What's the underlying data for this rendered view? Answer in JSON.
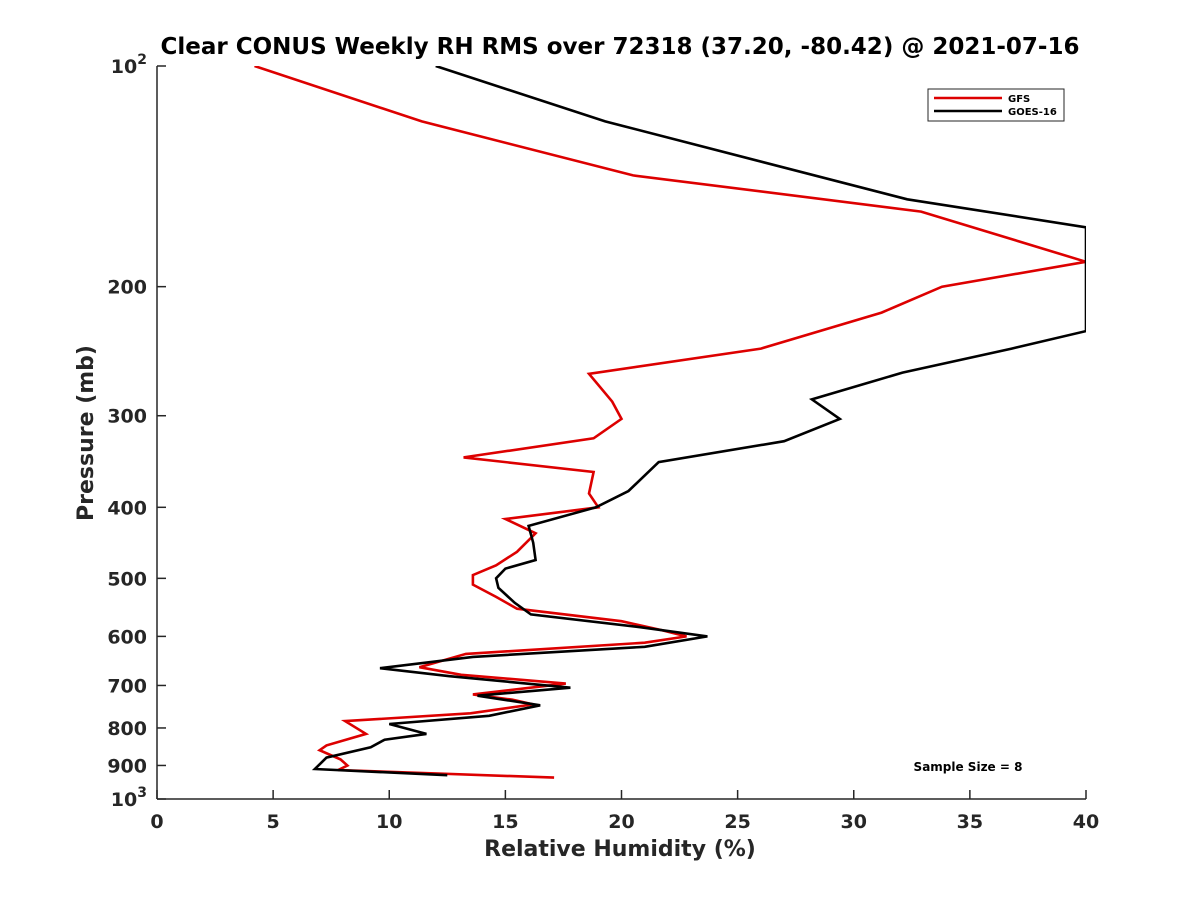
{
  "chart_data": {
    "type": "line",
    "title": "Clear CONUS Weekly RH RMS over 72318 (37.20, -80.42) @ 2021-07-16",
    "xlabel": "Relative Humidity (%)",
    "ylabel": "Pressure (mb)",
    "xlim": [
      0,
      40
    ],
    "ylim": [
      100,
      1000
    ],
    "y_scale": "log",
    "y_reversed": true,
    "grid": false,
    "legend_position": "top-right",
    "x_ticks": [
      "0",
      "5",
      "10",
      "15",
      "20",
      "25",
      "30",
      "35",
      "40"
    ],
    "y_ticks": [
      {
        "value": 100,
        "base": "10",
        "exp": "2"
      },
      {
        "value": 200,
        "label": "200"
      },
      {
        "value": 300,
        "label": "300"
      },
      {
        "value": 400,
        "label": "400"
      },
      {
        "value": 500,
        "label": "500"
      },
      {
        "value": 600,
        "label": "600"
      },
      {
        "value": 700,
        "label": "700"
      },
      {
        "value": 800,
        "label": "800"
      },
      {
        "value": 900,
        "label": "900"
      },
      {
        "value": 1000,
        "base": "10",
        "exp": "3"
      }
    ],
    "annotation": "Sample Size = 8",
    "series": [
      {
        "name": "GFS",
        "color": "#dd0000",
        "points": [
          [
            4.2,
            100
          ],
          [
            11.4,
            119
          ],
          [
            20.5,
            141
          ],
          [
            32.9,
            158
          ],
          [
            40,
            185
          ],
          [
            33.8,
            200
          ],
          [
            31.2,
            217
          ],
          [
            26.0,
            243
          ],
          [
            18.6,
            263
          ],
          [
            19.6,
            287
          ],
          [
            20.0,
            303
          ],
          [
            18.8,
            322
          ],
          [
            13.2,
            342
          ],
          [
            18.8,
            358
          ],
          [
            18.6,
            383
          ],
          [
            19.0,
            400
          ],
          [
            15.0,
            415
          ],
          [
            16.3,
            434
          ],
          [
            15.5,
            460
          ],
          [
            14.6,
            480
          ],
          [
            13.6,
            495
          ],
          [
            13.6,
            510
          ],
          [
            14.6,
            530
          ],
          [
            15.5,
            550
          ],
          [
            20.0,
            572
          ],
          [
            21.7,
            588
          ],
          [
            22.8,
            600
          ],
          [
            21.0,
            612
          ],
          [
            13.3,
            634
          ],
          [
            11.3,
            661
          ],
          [
            13.1,
            677
          ],
          [
            17.6,
            696
          ],
          [
            13.6,
            720
          ],
          [
            15.3,
            732
          ],
          [
            16.2,
            743
          ],
          [
            13.5,
            764
          ],
          [
            8.1,
            783
          ],
          [
            9.0,
            815
          ],
          [
            7.3,
            845
          ],
          [
            7.0,
            858
          ],
          [
            7.9,
            883
          ],
          [
            8.2,
            900
          ],
          [
            7.8,
            913
          ],
          [
            17.1,
            935
          ]
        ]
      },
      {
        "name": "GOES-16",
        "color": "#000000",
        "points": [
          [
            12.0,
            100
          ],
          [
            19.3,
            119
          ],
          [
            32.3,
            152
          ],
          [
            40,
            166
          ],
          [
            40,
            230
          ],
          [
            36.8,
            243
          ],
          [
            32.1,
            262
          ],
          [
            28.2,
            285
          ],
          [
            29.4,
            303
          ],
          [
            27.0,
            325
          ],
          [
            21.6,
            347
          ],
          [
            20.3,
            380
          ],
          [
            18.9,
            400
          ],
          [
            16.0,
            424
          ],
          [
            16.2,
            447
          ],
          [
            16.3,
            472
          ],
          [
            15.0,
            485
          ],
          [
            14.6,
            500
          ],
          [
            14.7,
            515
          ],
          [
            15.4,
            540
          ],
          [
            16.1,
            560
          ],
          [
            20.8,
            583
          ],
          [
            23.7,
            600
          ],
          [
            21.0,
            620
          ],
          [
            13.6,
            640
          ],
          [
            9.6,
            663
          ],
          [
            12.6,
            680
          ],
          [
            17.8,
            705
          ],
          [
            13.8,
            723
          ],
          [
            16.5,
            745
          ],
          [
            14.3,
            770
          ],
          [
            10.0,
            790
          ],
          [
            11.6,
            815
          ],
          [
            9.8,
            830
          ],
          [
            9.2,
            850
          ],
          [
            7.3,
            878
          ],
          [
            6.8,
            910
          ],
          [
            12.5,
            928
          ]
        ]
      }
    ]
  }
}
